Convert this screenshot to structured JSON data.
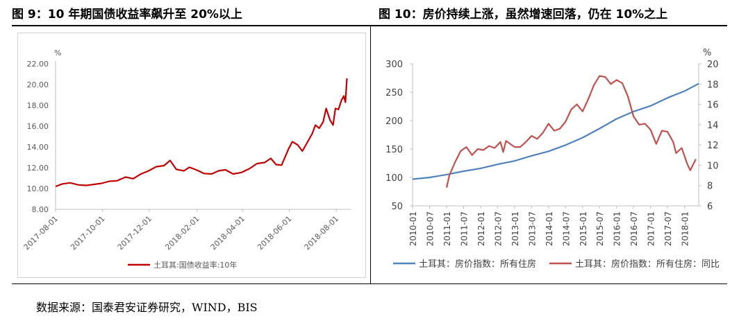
{
  "titles": {
    "left": "图 9：10 年期国债收益率飙升至 20%以上",
    "right": "图 10：房价持续上涨，虽然增速回落，仍在 10%之上"
  },
  "source": "数据来源：国泰君安证券研究，WIND，BIS",
  "chart_data": [
    {
      "type": "line",
      "unit_label": "%",
      "ylim": [
        8,
        22
      ],
      "yticks": [
        "22.00",
        "20.00",
        "18.00",
        "16.00",
        "14.00",
        "12.00",
        "10.00",
        "8.00"
      ],
      "x_start": "2017-08-01",
      "x_end": "2018-08-20",
      "xticks": [
        "2017-08-01",
        "2017-10-01",
        "2017-12-01",
        "2018-02-01",
        "2018-04-01",
        "2018-06-01",
        "2018-08-01"
      ],
      "legend_position": "bottom",
      "grid": false,
      "series": [
        {
          "name": "土耳其:国债收益率:10年",
          "color": "#c00000",
          "points": [
            [
              "2017-08-01",
              10.2
            ],
            [
              "2017-08-10",
              10.45
            ],
            [
              "2017-08-20",
              10.55
            ],
            [
              "2017-08-31",
              10.35
            ],
            [
              "2017-09-10",
              10.3
            ],
            [
              "2017-09-20",
              10.4
            ],
            [
              "2017-09-30",
              10.5
            ],
            [
              "2017-10-10",
              10.7
            ],
            [
              "2017-10-20",
              10.75
            ],
            [
              "2017-10-31",
              11.1
            ],
            [
              "2017-11-10",
              10.95
            ],
            [
              "2017-11-20",
              11.4
            ],
            [
              "2017-11-30",
              11.7
            ],
            [
              "2017-12-10",
              12.1
            ],
            [
              "2017-12-20",
              12.2
            ],
            [
              "2017-12-28",
              12.7
            ],
            [
              "2018-01-05",
              11.85
            ],
            [
              "2018-01-15",
              11.7
            ],
            [
              "2018-01-22",
              12.05
            ],
            [
              "2018-01-31",
              11.8
            ],
            [
              "2018-02-10",
              11.45
            ],
            [
              "2018-02-20",
              11.4
            ],
            [
              "2018-03-01",
              11.7
            ],
            [
              "2018-03-10",
              11.8
            ],
            [
              "2018-03-20",
              11.4
            ],
            [
              "2018-03-31",
              11.55
            ],
            [
              "2018-04-10",
              11.9
            ],
            [
              "2018-04-20",
              12.4
            ],
            [
              "2018-04-30",
              12.5
            ],
            [
              "2018-05-08",
              12.9
            ],
            [
              "2018-05-15",
              12.3
            ],
            [
              "2018-05-22",
              12.25
            ],
            [
              "2018-05-31",
              13.8
            ],
            [
              "2018-06-05",
              14.5
            ],
            [
              "2018-06-12",
              14.2
            ],
            [
              "2018-06-18",
              13.6
            ],
            [
              "2018-06-25",
              14.5
            ],
            [
              "2018-07-01",
              15.3
            ],
            [
              "2018-07-05",
              16.1
            ],
            [
              "2018-07-10",
              15.8
            ],
            [
              "2018-07-15",
              16.4
            ],
            [
              "2018-07-19",
              17.7
            ],
            [
              "2018-07-24",
              16.6
            ],
            [
              "2018-07-28",
              16.1
            ],
            [
              "2018-07-31",
              17.7
            ],
            [
              "2018-08-04",
              17.6
            ],
            [
              "2018-08-08",
              18.5
            ],
            [
              "2018-08-11",
              18.9
            ],
            [
              "2018-08-13",
              18.3
            ],
            [
              "2018-08-15",
              20.6
            ]
          ]
        }
      ]
    },
    {
      "type": "line",
      "unit_label_right": "%",
      "ylim_left": [
        50,
        300
      ],
      "ylim_right": [
        6,
        20
      ],
      "yticks_left": [
        300,
        250,
        200,
        150,
        100,
        50
      ],
      "yticks_right": [
        20,
        18,
        16,
        14,
        12,
        10,
        8,
        6
      ],
      "x_start": "2010-01",
      "x_end": "2018-06",
      "xticks": [
        "2010-01",
        "2010-07",
        "2011-01",
        "2011-07",
        "2012-01",
        "2012-07",
        "2013-01",
        "2013-07",
        "2014-01",
        "2014-07",
        "2015-01",
        "2015-07",
        "2016-01",
        "2016-07",
        "2017-01",
        "2017-07",
        "2018-01"
      ],
      "legend_position": "bottom",
      "grid": false,
      "series": [
        {
          "name": "土耳其：房价指数：所有住房",
          "axis": "left",
          "color": "#4f81bd",
          "points": [
            [
              "2010-01",
              97
            ],
            [
              "2010-07",
              100
            ],
            [
              "2011-01",
              105
            ],
            [
              "2011-07",
              111
            ],
            [
              "2012-01",
              116
            ],
            [
              "2012-07",
              123
            ],
            [
              "2013-01",
              129
            ],
            [
              "2013-07",
              138
            ],
            [
              "2014-01",
              146
            ],
            [
              "2014-07",
              157
            ],
            [
              "2015-01",
              170
            ],
            [
              "2015-07",
              186
            ],
            [
              "2016-01",
              203
            ],
            [
              "2016-07",
              216
            ],
            [
              "2017-01",
              226
            ],
            [
              "2017-07",
              240
            ],
            [
              "2018-01",
              252
            ],
            [
              "2018-06",
              265
            ]
          ]
        },
        {
          "name": "土耳其：房价指数：所有住房：同比",
          "axis": "right",
          "color": "#c0504d",
          "points": [
            [
              "2011-01",
              7.8
            ],
            [
              "2011-02",
              9.0
            ],
            [
              "2011-04",
              10.3
            ],
            [
              "2011-06",
              11.4
            ],
            [
              "2011-08",
              11.8
            ],
            [
              "2011-10",
              11.0
            ],
            [
              "2011-12",
              11.6
            ],
            [
              "2012-02",
              11.5
            ],
            [
              "2012-04",
              11.9
            ],
            [
              "2012-06",
              11.7
            ],
            [
              "2012-08",
              12.3
            ],
            [
              "2012-09",
              11.3
            ],
            [
              "2012-10",
              12.4
            ],
            [
              "2013-01",
              11.8
            ],
            [
              "2013-03",
              11.8
            ],
            [
              "2013-05",
              12.3
            ],
            [
              "2013-07",
              12.9
            ],
            [
              "2013-09",
              12.6
            ],
            [
              "2013-11",
              13.2
            ],
            [
              "2014-01",
              14.1
            ],
            [
              "2014-03",
              13.4
            ],
            [
              "2014-05",
              13.6
            ],
            [
              "2014-07",
              14.3
            ],
            [
              "2014-09",
              15.5
            ],
            [
              "2014-11",
              16.0
            ],
            [
              "2015-01",
              15.3
            ],
            [
              "2015-03",
              16.5
            ],
            [
              "2015-05",
              17.9
            ],
            [
              "2015-07",
              18.8
            ],
            [
              "2015-09",
              18.7
            ],
            [
              "2015-11",
              18.0
            ],
            [
              "2016-01",
              18.4
            ],
            [
              "2016-03",
              18.1
            ],
            [
              "2016-05",
              16.8
            ],
            [
              "2016-07",
              14.8
            ],
            [
              "2016-09",
              14.0
            ],
            [
              "2016-11",
              14.1
            ],
            [
              "2017-01",
              13.5
            ],
            [
              "2017-03",
              12.1
            ],
            [
              "2017-05",
              13.4
            ],
            [
              "2017-07",
              13.3
            ],
            [
              "2017-09",
              12.3
            ],
            [
              "2017-10",
              11.2
            ],
            [
              "2017-12",
              11.7
            ],
            [
              "2018-02",
              10.1
            ],
            [
              "2018-03",
              9.5
            ],
            [
              "2018-05",
              10.6
            ]
          ]
        }
      ]
    }
  ]
}
